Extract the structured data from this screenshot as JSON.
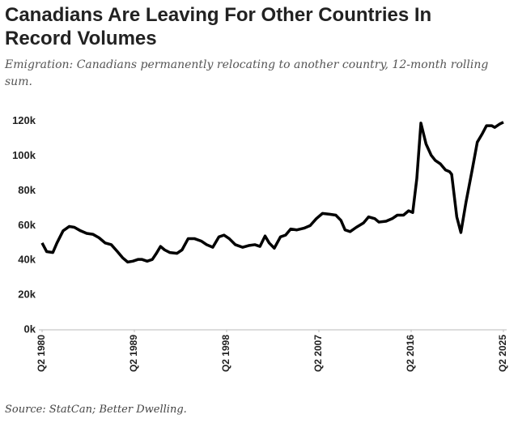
{
  "chart_data": {
    "type": "line",
    "title": "Canadians Are Leaving For Other Countries In Record Volumes",
    "subtitle": "Emigration: Canadians permanently relocating to another country, 12-month rolling sum.",
    "source": "Source: StatCan; Better Dwelling.",
    "x": [
      1980.25,
      1980.7,
      1981.3,
      1981.7,
      1982.3,
      1982.9,
      1983.4,
      1984.0,
      1984.6,
      1985.2,
      1985.8,
      1986.4,
      1987.0,
      1987.6,
      1988.1,
      1988.6,
      1989.1,
      1989.6,
      1990.0,
      1990.5,
      1991.0,
      1991.4,
      1991.8,
      1992.2,
      1992.7,
      1993.4,
      1993.9,
      1994.5,
      1995.1,
      1995.8,
      1996.3,
      1996.9,
      1997.5,
      1998.0,
      1998.5,
      1999.1,
      1999.8,
      2000.4,
      2001.0,
      2001.5,
      2002.0,
      2002.4,
      2002.9,
      2003.5,
      2004.0,
      2004.5,
      2005.1,
      2005.8,
      2006.4,
      2007.0,
      2007.6,
      2008.3,
      2008.9,
      2009.4,
      2009.8,
      2010.3,
      2010.9,
      2011.6,
      2012.1,
      2012.7,
      2013.1,
      2013.8,
      2014.4,
      2014.9,
      2015.5,
      2016.0,
      2016.4,
      2016.8,
      2017.2,
      2017.7,
      2018.2,
      2018.6,
      2019.1,
      2019.6,
      2020.0,
      2020.2,
      2020.7,
      2021.1,
      2021.6,
      2022.2,
      2022.7,
      2023.2,
      2023.6,
      2024.1,
      2024.4,
      2024.9,
      2025.25
    ],
    "series": [
      {
        "color": "#000000",
        "values": [
          50,
          45,
          44.5,
          50,
          57,
          59.5,
          59,
          57,
          55.5,
          55,
          53,
          50,
          49,
          45,
          41.5,
          39,
          39.5,
          40.5,
          40.5,
          39.5,
          40.5,
          44,
          48,
          46,
          44.5,
          44,
          46,
          52.5,
          52.5,
          51,
          49,
          47.5,
          53.5,
          54.5,
          52.5,
          49,
          47.5,
          48.5,
          49,
          48,
          54,
          50,
          47,
          53.5,
          54.5,
          58,
          57.5,
          58.5,
          60,
          64,
          67,
          66.5,
          66,
          63,
          57.5,
          56.5,
          59,
          61.5,
          65,
          64,
          62,
          62.5,
          64,
          66,
          66,
          68.5,
          67.5,
          87,
          119,
          107,
          100.5,
          97.5,
          95.5,
          92,
          91,
          89.5,
          65,
          56,
          73.5,
          92,
          108,
          113,
          117.5,
          117.5,
          116.5,
          118.5,
          119.5
        ]
      }
    ],
    "xlim": [
      1980.25,
      2025.25
    ],
    "xticks": [
      {
        "value": 1980.25,
        "label": "Q2 1980"
      },
      {
        "value": 1989.25,
        "label": "Q2 1989"
      },
      {
        "value": 1998.25,
        "label": "Q2 1998"
      },
      {
        "value": 2007.25,
        "label": "Q2 2007"
      },
      {
        "value": 2016.25,
        "label": "Q2 2016"
      },
      {
        "value": 2025.25,
        "label": "Q2 2025"
      }
    ],
    "ylim": [
      0,
      125
    ],
    "yticks": [
      {
        "value": 0,
        "label": "0k"
      },
      {
        "value": 20,
        "label": "20k"
      },
      {
        "value": 40,
        "label": "40k"
      },
      {
        "value": 60,
        "label": "60k"
      },
      {
        "value": 80,
        "label": "80k"
      },
      {
        "value": 100,
        "label": "100k"
      },
      {
        "value": 120,
        "label": "120k"
      }
    ],
    "grid": false
  }
}
